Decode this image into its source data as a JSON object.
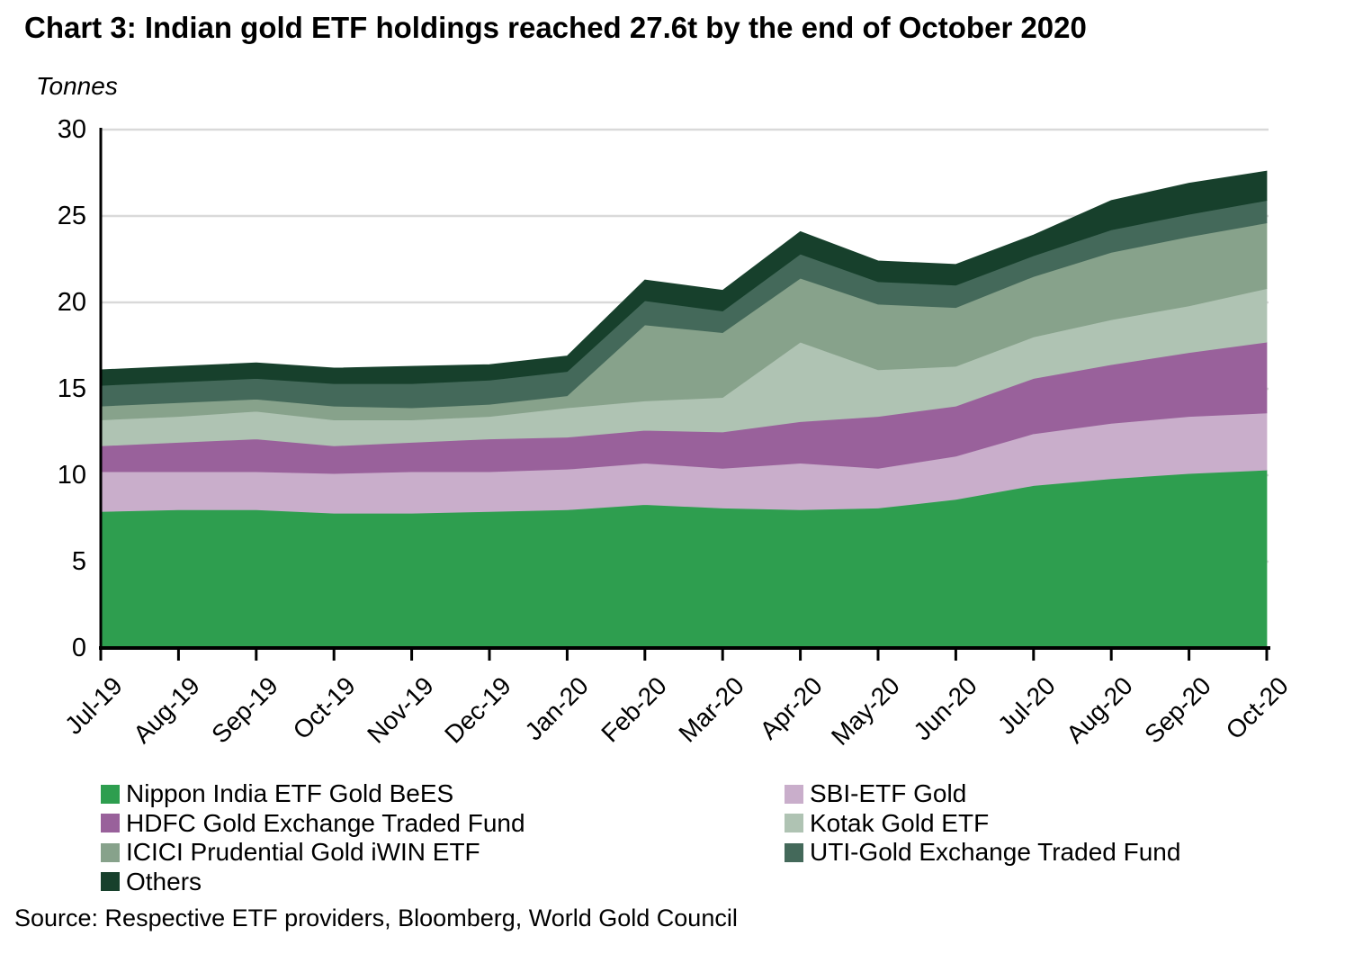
{
  "page": {
    "source": "Source: Respective ETF providers, Bloomberg, World Gold Council"
  },
  "chart_data": {
    "type": "area",
    "stacked": true,
    "title": "Chart 3: Indian gold ETF holdings reached 27.6t by the end of October 2020",
    "ylabel": "Tonnes",
    "xlabel": "",
    "ylim": [
      0,
      30
    ],
    "yticks": [
      0,
      5,
      10,
      15,
      20,
      25,
      30
    ],
    "grid": "horizontal",
    "gridline_color": "#D9D9D9",
    "axis_color": "#000000",
    "legend_position": "bottom",
    "legend_columns": 2,
    "categories": [
      "Jul-19",
      "Aug-19",
      "Sep-19",
      "Oct-19",
      "Nov-19",
      "Dec-19",
      "Jan-20",
      "Feb-20",
      "Mar-20",
      "Apr-20",
      "May-20",
      "Jun-20",
      "Jul-20",
      "Aug-20",
      "Sep-20",
      "Oct-20"
    ],
    "series": [
      {
        "name": "Nippon India ETF Gold BeES",
        "color": "#2E9E4F",
        "values": [
          7.9,
          8.0,
          8.0,
          7.8,
          7.8,
          7.9,
          8.0,
          8.3,
          8.1,
          8.0,
          8.1,
          8.6,
          9.4,
          9.8,
          10.1,
          10.3
        ]
      },
      {
        "name": "SBI-ETF Gold",
        "color": "#C9AECB",
        "values": [
          2.3,
          2.2,
          2.2,
          2.3,
          2.4,
          2.3,
          2.35,
          2.4,
          2.3,
          2.7,
          2.3,
          2.5,
          3.0,
          3.2,
          3.3,
          3.3
        ]
      },
      {
        "name": "HDFC Gold Exchange Traded Fund",
        "color": "#99619B",
        "values": [
          1.5,
          1.7,
          1.9,
          1.6,
          1.7,
          1.9,
          1.85,
          1.9,
          2.1,
          2.4,
          3.0,
          2.9,
          3.2,
          3.4,
          3.7,
          4.1
        ]
      },
      {
        "name": "Kotak Gold ETF",
        "color": "#AFC3B3",
        "values": [
          1.5,
          1.5,
          1.6,
          1.5,
          1.3,
          1.3,
          1.7,
          1.7,
          2.0,
          4.6,
          2.7,
          2.3,
          2.4,
          2.6,
          2.7,
          3.1
        ]
      },
      {
        "name": "ICICI Prudential Gold iWIN ETF",
        "color": "#87A28B",
        "values": [
          0.8,
          0.8,
          0.7,
          0.8,
          0.7,
          0.7,
          0.7,
          4.4,
          3.75,
          3.7,
          3.8,
          3.4,
          3.5,
          3.9,
          4.0,
          3.8
        ]
      },
      {
        "name": "UTI-Gold Exchange Traded Fund",
        "color": "#44695A",
        "values": [
          1.2,
          1.2,
          1.2,
          1.3,
          1.4,
          1.4,
          1.4,
          1.4,
          1.25,
          1.4,
          1.3,
          1.3,
          1.2,
          1.3,
          1.3,
          1.3
        ]
      },
      {
        "name": "Others",
        "color": "#17402C",
        "values": [
          0.9,
          0.9,
          0.9,
          0.9,
          1.0,
          0.9,
          0.9,
          1.2,
          1.2,
          1.3,
          1.2,
          1.2,
          1.2,
          1.7,
          1.8,
          1.7
        ]
      }
    ],
    "totals": [
      16.1,
      16.3,
      16.5,
      16.2,
      16.3,
      16.4,
      16.9,
      21.3,
      20.7,
      24.1,
      22.4,
      22.2,
      23.9,
      25.9,
      26.9,
      27.6
    ]
  }
}
